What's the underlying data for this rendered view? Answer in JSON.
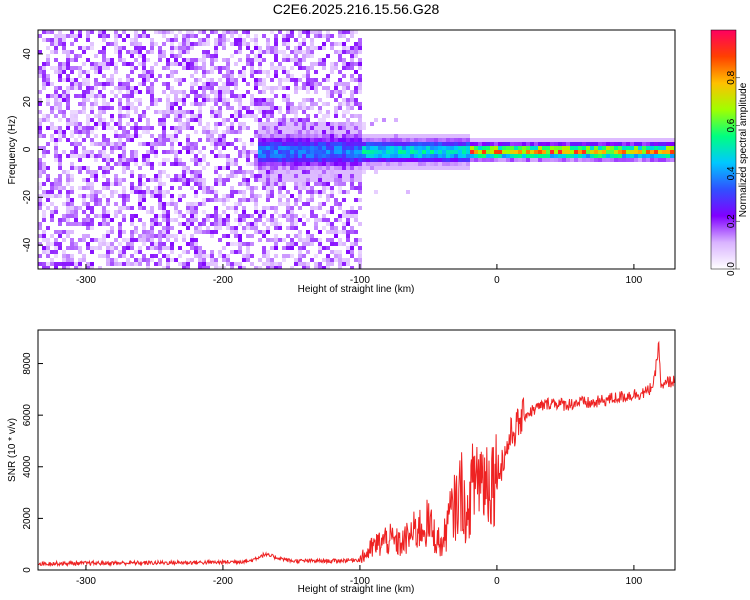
{
  "title": "C2E6.2025.216.15.56.G28",
  "chart_data": [
    {
      "type": "heatmap",
      "xlabel": "Height of straight line (km)",
      "ylabel": "Frequency (Hz)",
      "xlim": [
        -335,
        130
      ],
      "ylim": [
        -50,
        50
      ],
      "xticks": [
        "-300",
        "-200",
        "-100",
        "0",
        "100"
      ],
      "xtick_values": [
        -300,
        -200,
        -100,
        0,
        100
      ],
      "yticks": [
        "-40",
        "-20",
        "0",
        "20",
        "40"
      ],
      "ytick_values": [
        -40,
        -20,
        0,
        20,
        40
      ],
      "colorbar": {
        "label": "Normalized spectral amplitude",
        "range": [
          0,
          1
        ],
        "ticks": [
          "0.0",
          "0.2",
          "0.4",
          "0.6",
          "0.8"
        ],
        "tick_values": [
          0,
          0.2,
          0.4,
          0.6,
          0.8
        ],
        "colormap": [
          "#ffffff",
          "#d9b3ff",
          "#8000ff",
          "#3050ff",
          "#00c8ff",
          "#00ff80",
          "#a0ff00",
          "#ffc000",
          "#ff4000",
          "#ff0060"
        ]
      },
      "regions": [
        {
          "x_range": [
            -335,
            -100
          ],
          "description_level": 0.15,
          "freq_spread": 50
        },
        {
          "x_range": [
            -175,
            -100
          ],
          "description_level": 0.35,
          "freq_spread": 5
        },
        {
          "x_range": [
            -100,
            -20
          ],
          "description_level": 0.5,
          "freq_spread": 3
        },
        {
          "x_range": [
            -20,
            130
          ],
          "description_level": 0.75,
          "freq_spread": 2
        }
      ]
    },
    {
      "type": "line",
      "xlabel": "Height of straight line (km)",
      "ylabel": "SNR (10 * v/v)",
      "xlim": [
        -335,
        130
      ],
      "ylim": [
        0,
        9300
      ],
      "xticks": [
        "-300",
        "-200",
        "-100",
        "0",
        "100"
      ],
      "xtick_values": [
        -300,
        -200,
        -100,
        0,
        100
      ],
      "yticks": [
        "0",
        "2000",
        "4000",
        "6000",
        "8000"
      ],
      "ytick_values": [
        0,
        2000,
        4000,
        6000,
        8000
      ],
      "series_color": "#ee2222",
      "x": [
        -335,
        -300,
        -250,
        -200,
        -180,
        -170,
        -150,
        -120,
        -100,
        -90,
        -80,
        -70,
        -60,
        -50,
        -45,
        -40,
        -35,
        -30,
        -25,
        -22,
        -20,
        -15,
        -10,
        -5,
        0,
        5,
        10,
        15,
        20,
        30,
        40,
        50,
        60,
        70,
        80,
        90,
        100,
        110,
        115,
        118,
        120,
        125,
        130
      ],
      "y": [
        250,
        260,
        280,
        300,
        350,
        600,
        350,
        350,
        400,
        900,
        1200,
        1000,
        1500,
        1800,
        1300,
        900,
        2000,
        2500,
        3200,
        1500,
        2800,
        3800,
        3600,
        3500,
        3800,
        4300,
        5200,
        5600,
        6000,
        6300,
        6500,
        6400,
        6500,
        6450,
        6600,
        6700,
        6800,
        6900,
        7300,
        8800,
        7000,
        7300,
        7300
      ]
    }
  ]
}
